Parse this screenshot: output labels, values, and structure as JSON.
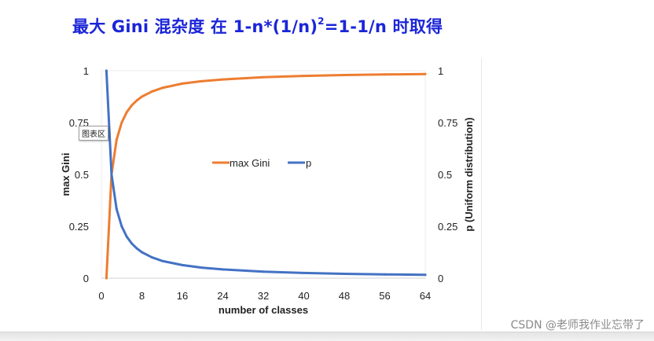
{
  "title": {
    "prefix": "最大 Gini 混杂度 在 1-n*(1/n)",
    "sup": "2",
    "suffix": "=1-1/n 时取得"
  },
  "tooltip": "图表区",
  "watermark": "CSDN @老师我作业忘带了",
  "chart_data": {
    "type": "line",
    "title": "",
    "xlabel": "number of classes",
    "ylabel_left": "max Gini",
    "ylabel_right": "p (Uniform distribution)",
    "xlim": [
      0,
      64
    ],
    "ylim": [
      0,
      1
    ],
    "x_ticks": [
      "0",
      "8",
      "16",
      "24",
      "32",
      "40",
      "48",
      "56",
      "64"
    ],
    "y_ticks_left": [
      "0",
      "0.25",
      "0.5",
      "0.75",
      "1"
    ],
    "y_ticks_right": [
      "0",
      "0.25",
      "0.5",
      "0.75",
      "1"
    ],
    "grid": false,
    "legend_position": "center",
    "colors": {
      "max_gini": "#ed7d31",
      "p": "#4472c4"
    },
    "x": [
      1,
      2,
      3,
      4,
      5,
      6,
      7,
      8,
      10,
      12,
      16,
      20,
      24,
      32,
      40,
      48,
      56,
      64
    ],
    "series": [
      {
        "name": "max Gini",
        "axis": "left",
        "values": [
          0,
          0.5,
          0.667,
          0.75,
          0.8,
          0.833,
          0.857,
          0.875,
          0.9,
          0.917,
          0.938,
          0.95,
          0.958,
          0.969,
          0.975,
          0.979,
          0.982,
          0.984
        ]
      },
      {
        "name": "p",
        "axis": "right",
        "values": [
          1,
          0.5,
          0.333,
          0.25,
          0.2,
          0.167,
          0.143,
          0.125,
          0.1,
          0.083,
          0.063,
          0.05,
          0.042,
          0.031,
          0.025,
          0.021,
          0.018,
          0.016
        ]
      }
    ]
  }
}
